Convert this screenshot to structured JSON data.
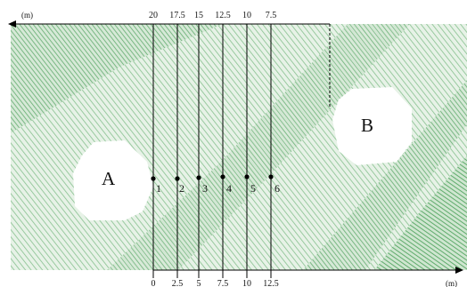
{
  "figure": {
    "top_axis": {
      "unit": "(m)",
      "ticks": [
        "20",
        "17.5",
        "15",
        "12.5",
        "10",
        "7.5"
      ]
    },
    "bottom_axis": {
      "unit": "(m)",
      "ticks": [
        "0",
        "2.5",
        "5",
        "7.5",
        "10",
        "12.5"
      ]
    },
    "tunnels": [
      {
        "label": "A"
      },
      {
        "label": "B"
      }
    ],
    "measurement_points": [
      "1",
      "2",
      "3",
      "4",
      "5",
      "6"
    ],
    "colors": {
      "rock_band_light": "#e4f0e4",
      "rock_band_dark": "#cde2ce",
      "hatch": "#7dbb86",
      "fracture_zone": "#9ccf9f",
      "lines": "#000000",
      "tunnel": "#ffffff"
    }
  }
}
